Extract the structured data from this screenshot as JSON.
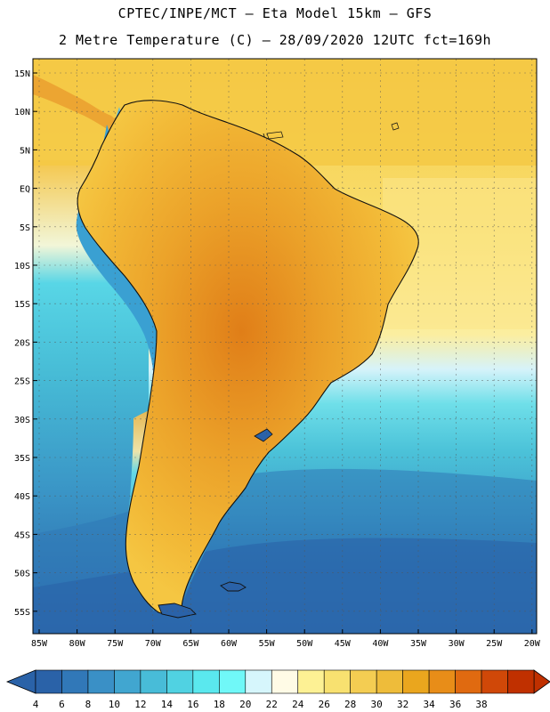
{
  "header": {
    "title_line1": "CPTEC/INPE/MCT –  Eta Model 15km – GFS",
    "title_line2": "2 Metre Temperature (C) – 28/09/2020 12UTC fct=169h"
  },
  "map": {
    "lat_labels": [
      "15N",
      "10N",
      "5N",
      "EQ",
      "5S",
      "10S",
      "15S",
      "20S",
      "25S",
      "30S",
      "35S",
      "40S",
      "45S",
      "50S",
      "55S"
    ],
    "lon_labels": [
      "85W",
      "80W",
      "75W",
      "70W",
      "65W",
      "60W",
      "55W",
      "50W",
      "45W",
      "40W",
      "35W",
      "30W",
      "25W",
      "20W"
    ],
    "colors": {
      "ocean_cold": "#2b6cb0",
      "ocean_cool": "#3ea0cc",
      "ocean_mid": "#4cc3d9",
      "ocean_warm": "#a8e8f5",
      "land_hot": "#e08a1c",
      "land_warm": "#f2b632",
      "sea_warm": "#f7d257",
      "sea_pale": "#fbe98a",
      "andes": "#35a4d6"
    }
  },
  "colorbar": {
    "levels": [
      "4",
      "6",
      "8",
      "10",
      "12",
      "14",
      "16",
      "18",
      "20",
      "22",
      "24",
      "26",
      "28",
      "30",
      "32",
      "34",
      "36",
      "38"
    ],
    "colors": [
      "#2a62a8",
      "#3178b8",
      "#3a90c6",
      "#41a6d0",
      "#48bcd8",
      "#50d2e2",
      "#5ae8ee",
      "#70f8f8",
      "#d6f6fc",
      "#fffbe6",
      "#fdf194",
      "#f8e170",
      "#f4cd52",
      "#eebc3a",
      "#eaa61e",
      "#e88d18",
      "#e06a10",
      "#d04808",
      "#c03000"
    ],
    "low_color": "#2a62a8",
    "high_color": "#c03000"
  }
}
